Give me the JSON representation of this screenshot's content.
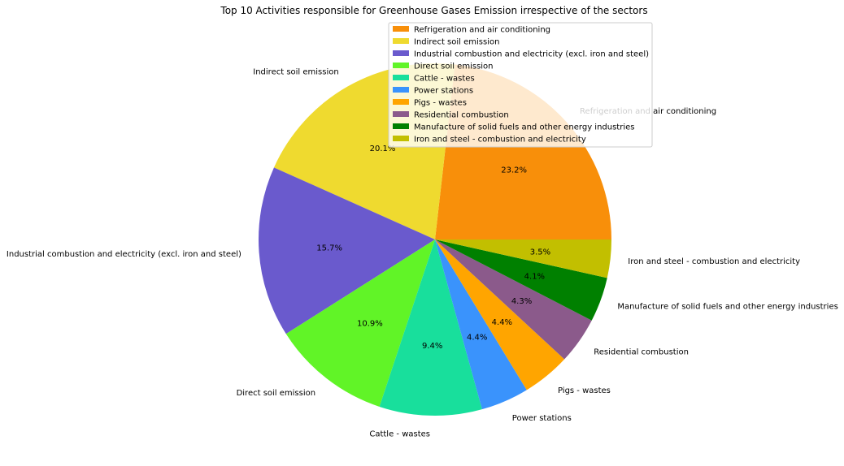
{
  "chart_data": {
    "type": "pie",
    "title": "Top 10 Activities responsible for Greenhouse Gases Emission irrespective of the sectors",
    "slices": [
      {
        "label": "Refrigeration and air conditioning",
        "value": 23.2,
        "pct_text": "23.2%",
        "color": "#F88F0A"
      },
      {
        "label": "Indirect soil emission",
        "value": 20.1,
        "pct_text": "20.1%",
        "color": "#EFDA2F"
      },
      {
        "label": "Industrial combustion and electricity (excl. iron and steel)",
        "value": 15.7,
        "pct_text": "15.7%",
        "color": "#6A5ACD"
      },
      {
        "label": "Direct soil emission",
        "value": 10.9,
        "pct_text": "10.9%",
        "color": "#61F427"
      },
      {
        "label": "Cattle - wastes",
        "value": 9.4,
        "pct_text": "9.4%",
        "color": "#18DF9C"
      },
      {
        "label": "Power stations",
        "value": 4.4,
        "pct_text": "4.4%",
        "color": "#3A93FC"
      },
      {
        "label": "Pigs - wastes",
        "value": 4.4,
        "pct_text": "4.4%",
        "color": "#FFA500"
      },
      {
        "label": "Residential combustion",
        "value": 4.3,
        "pct_text": "4.3%",
        "color": "#8B5A8B"
      },
      {
        "label": "Manufacture of solid fuels and other energy industries",
        "value": 4.1,
        "pct_text": "4.1%",
        "color": "#008000"
      },
      {
        "label": "Iron and steel - combustion and electricity",
        "value": 3.5,
        "pct_text": "3.5%",
        "color": "#C2BF00"
      }
    ],
    "start_angle_deg": 0,
    "direction": "counterclockwise",
    "legend": "top-right"
  }
}
